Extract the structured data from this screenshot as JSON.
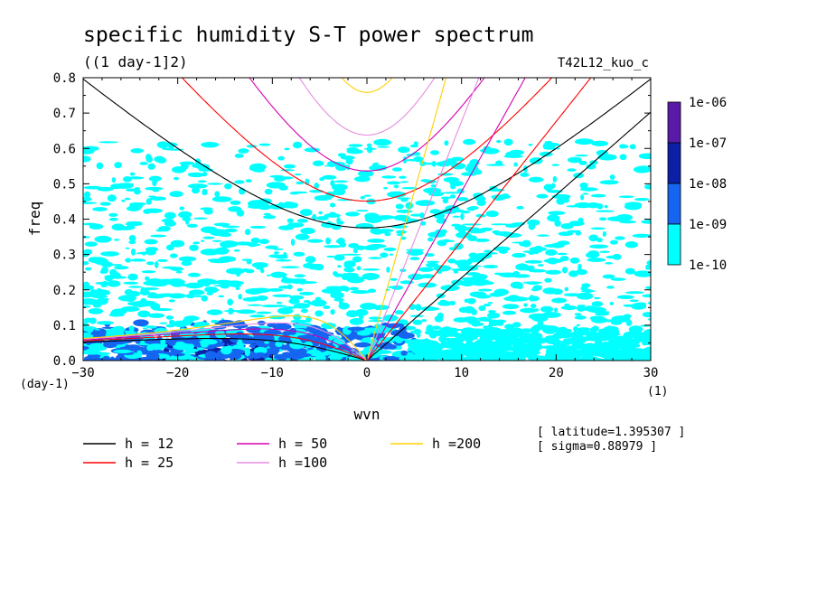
{
  "chart_data": {
    "type": "heatmap",
    "title": "specific humidity S-T power spectrum",
    "subtitle": "((1 day-1]2)",
    "run_label": "T42L12_kuo_c",
    "xlabel": "wvn",
    "ylabel": "freq",
    "x_unit": "(1)",
    "y_unit": "(day-1)",
    "xlim": [
      -30,
      30
    ],
    "ylim": [
      0,
      0.8
    ],
    "x_ticks": [
      -30,
      -20,
      -10,
      0,
      10,
      20,
      30
    ],
    "x_tick_labels": [
      "−30",
      "−20",
      "−10",
      "0",
      "10",
      "20",
      "30"
    ],
    "y_ticks": [
      0.0,
      0.1,
      0.2,
      0.3,
      0.4,
      0.5,
      0.6,
      0.7,
      0.8
    ],
    "y_tick_labels": [
      "0.0",
      "0.1",
      "0.2",
      "0.3",
      "0.4",
      "0.5",
      "0.6",
      "0.7",
      "0.8"
    ],
    "colorbar": {
      "levels": [
        "1e-06",
        "1e-07",
        "1e-08",
        "1e-09",
        "1e-10"
      ],
      "colors": [
        "#5a1aa8",
        "#0d1fa6",
        "#1565f0",
        "#00ffff"
      ]
    },
    "dispersion_curves": [
      {
        "name": "h = 12",
        "h": 12,
        "color": "#000000"
      },
      {
        "name": "h = 25",
        "h": 25,
        "color": "#ff0000"
      },
      {
        "name": "h = 50",
        "h": 50,
        "color": "#d500b0"
      },
      {
        "name": "h =100",
        "h": 100,
        "color": "#e58ce0"
      },
      {
        "name": "h =200",
        "h": 200,
        "color": "#ffd000"
      }
    ],
    "info": [
      "[ latitude=1.395307 ]",
      "[ sigma=0.88979 ]"
    ]
  }
}
